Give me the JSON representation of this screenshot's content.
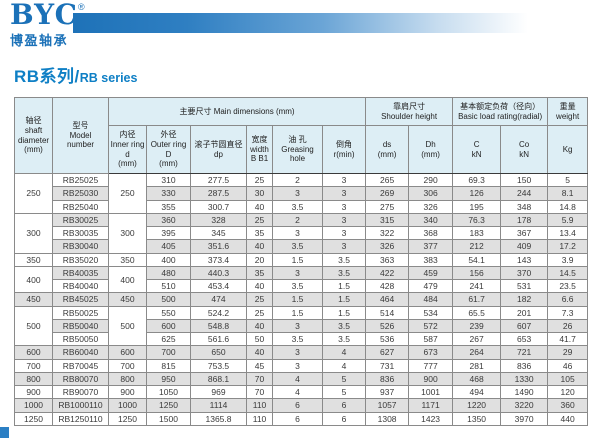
{
  "logo": {
    "text": "BYC",
    "registered": "®",
    "subtext": "博盈轴承"
  },
  "title": {
    "cn": "RB系列/",
    "en": "RB series"
  },
  "colors": {
    "brand_blue": "#1b71b8",
    "header_bg": "#ddeef5",
    "stripe_gray": "#e0e0e0"
  },
  "table": {
    "header": {
      "shaft": [
        "轴径",
        "shaft",
        "diameter",
        "(mm)"
      ],
      "model": [
        "型号",
        "Model",
        "number"
      ],
      "main_dimensions": "主要尺寸 Main dimensions (mm)",
      "shoulder": [
        "靠肩尺寸",
        "Shoulder height"
      ],
      "load_rating": [
        "基本额定负荷（径向）",
        "Basic load rating(radial)"
      ],
      "weight": [
        "重量",
        "weight"
      ],
      "sub": [
        [
          "内径",
          "Inner ring",
          "d",
          "(mm)"
        ],
        [
          "外径",
          "Outer ring",
          "D",
          "(mm)"
        ],
        [
          "滚子节圆直径",
          "dp"
        ],
        [
          "宽度",
          "width",
          "B B1"
        ],
        [
          "油 孔",
          "Greasing",
          "hole"
        ],
        [
          "倒角",
          "r(min)"
        ],
        [
          "ds",
          "(mm)"
        ],
        [
          "Dh",
          "(mm)"
        ],
        [
          "C",
          "kN"
        ],
        [
          "Co",
          "kN"
        ],
        [
          "Kg"
        ]
      ]
    },
    "groups": [
      {
        "shaft": "250",
        "inner": "250",
        "rows": [
          {
            "model": "RB25025",
            "D": "310",
            "dp": "277.5",
            "B": "25",
            "grease": "2",
            "r": "3",
            "ds": "265",
            "Dh": "290",
            "C": "69.3",
            "Co": "150",
            "kg": "5"
          },
          {
            "model": "RB25030",
            "D": "330",
            "dp": "287.5",
            "B": "30",
            "grease": "3",
            "r": "3",
            "ds": "269",
            "Dh": "306",
            "C": "126",
            "Co": "244",
            "kg": "8.1"
          },
          {
            "model": "RB25040",
            "D": "355",
            "dp": "300.7",
            "B": "40",
            "grease": "3.5",
            "r": "3",
            "ds": "275",
            "Dh": "326",
            "C": "195",
            "Co": "348",
            "kg": "14.8"
          }
        ]
      },
      {
        "shaft": "300",
        "inner": "300",
        "rows": [
          {
            "model": "RB30025",
            "D": "360",
            "dp": "328",
            "B": "25",
            "grease": "2",
            "r": "3",
            "ds": "315",
            "Dh": "340",
            "C": "76.3",
            "Co": "178",
            "kg": "5.9"
          },
          {
            "model": "RB30035",
            "D": "395",
            "dp": "345",
            "B": "35",
            "grease": "3",
            "r": "3",
            "ds": "322",
            "Dh": "368",
            "C": "183",
            "Co": "367",
            "kg": "13.4"
          },
          {
            "model": "RB30040",
            "D": "405",
            "dp": "351.6",
            "B": "40",
            "grease": "3.5",
            "r": "3",
            "ds": "326",
            "Dh": "377",
            "C": "212",
            "Co": "409",
            "kg": "17.2"
          }
        ]
      },
      {
        "shaft": "350",
        "inner": "350",
        "rows": [
          {
            "model": "RB35020",
            "D": "400",
            "dp": "373.4",
            "B": "20",
            "grease": "1.5",
            "r": "3.5",
            "ds": "363",
            "Dh": "383",
            "C": "54.1",
            "Co": "143",
            "kg": "3.9"
          }
        ]
      },
      {
        "shaft": "400",
        "inner": "400",
        "rows": [
          {
            "model": "RB40035",
            "D": "480",
            "dp": "440.3",
            "B": "35",
            "grease": "3",
            "r": "3.5",
            "ds": "422",
            "Dh": "459",
            "C": "156",
            "Co": "370",
            "kg": "14.5"
          },
          {
            "model": "RB40040",
            "D": "510",
            "dp": "453.4",
            "B": "40",
            "grease": "3.5",
            "r": "1.5",
            "ds": "428",
            "Dh": "479",
            "C": "241",
            "Co": "531",
            "kg": "23.5"
          }
        ]
      },
      {
        "shaft": "450",
        "inner": "450",
        "rows": [
          {
            "model": "RB45025",
            "D": "500",
            "dp": "474",
            "B": "25",
            "grease": "1.5",
            "r": "1.5",
            "ds": "464",
            "Dh": "484",
            "C": "61.7",
            "Co": "182",
            "kg": "6.6"
          }
        ]
      },
      {
        "shaft": "500",
        "inner": "500",
        "rows": [
          {
            "model": "RB50025",
            "D": "550",
            "dp": "524.2",
            "B": "25",
            "grease": "1.5",
            "r": "1.5",
            "ds": "514",
            "Dh": "534",
            "C": "65.5",
            "Co": "201",
            "kg": "7.3"
          },
          {
            "model": "RB50040",
            "D": "600",
            "dp": "548.8",
            "B": "40",
            "grease": "3",
            "r": "3.5",
            "ds": "526",
            "Dh": "572",
            "C": "239",
            "Co": "607",
            "kg": "26"
          },
          {
            "model": "RB50050",
            "D": "625",
            "dp": "561.6",
            "B": "50",
            "grease": "3.5",
            "r": "3.5",
            "ds": "536",
            "Dh": "587",
            "C": "267",
            "Co": "653",
            "kg": "41.7"
          }
        ]
      },
      {
        "shaft": "600",
        "inner": "600",
        "rows": [
          {
            "model": "RB60040",
            "D": "700",
            "dp": "650",
            "B": "40",
            "grease": "3",
            "r": "4",
            "ds": "627",
            "Dh": "673",
            "C": "264",
            "Co": "721",
            "kg": "29"
          }
        ]
      },
      {
        "shaft": "700",
        "inner": "700",
        "rows": [
          {
            "model": "RB70045",
            "D": "815",
            "dp": "753.5",
            "B": "45",
            "grease": "3",
            "r": "4",
            "ds": "731",
            "Dh": "777",
            "C": "281",
            "Co": "836",
            "kg": "46"
          }
        ]
      },
      {
        "shaft": "800",
        "inner": "800",
        "rows": [
          {
            "model": "RB80070",
            "D": "950",
            "dp": "868.1",
            "B": "70",
            "grease": "4",
            "r": "5",
            "ds": "836",
            "Dh": "900",
            "C": "468",
            "Co": "1330",
            "kg": "105"
          }
        ]
      },
      {
        "shaft": "900",
        "inner": "900",
        "rows": [
          {
            "model": "RB90070",
            "D": "1050",
            "dp": "969",
            "B": "70",
            "grease": "4",
            "r": "5",
            "ds": "937",
            "Dh": "1001",
            "C": "494",
            "Co": "1490",
            "kg": "120"
          }
        ]
      },
      {
        "shaft": "1000",
        "inner": "1000",
        "rows": [
          {
            "model": "RB1000110",
            "D": "1250",
            "dp": "1114",
            "B": "110",
            "grease": "6",
            "r": "6",
            "ds": "1057",
            "Dh": "1171",
            "C": "1220",
            "Co": "3220",
            "kg": "360"
          }
        ]
      },
      {
        "shaft": "1250",
        "inner": "1250",
        "rows": [
          {
            "model": "RB1250110",
            "D": "1500",
            "dp": "1365.8",
            "B": "110",
            "grease": "6",
            "r": "6",
            "ds": "1308",
            "Dh": "1423",
            "C": "1350",
            "Co": "3970",
            "kg": "440"
          }
        ]
      }
    ]
  }
}
